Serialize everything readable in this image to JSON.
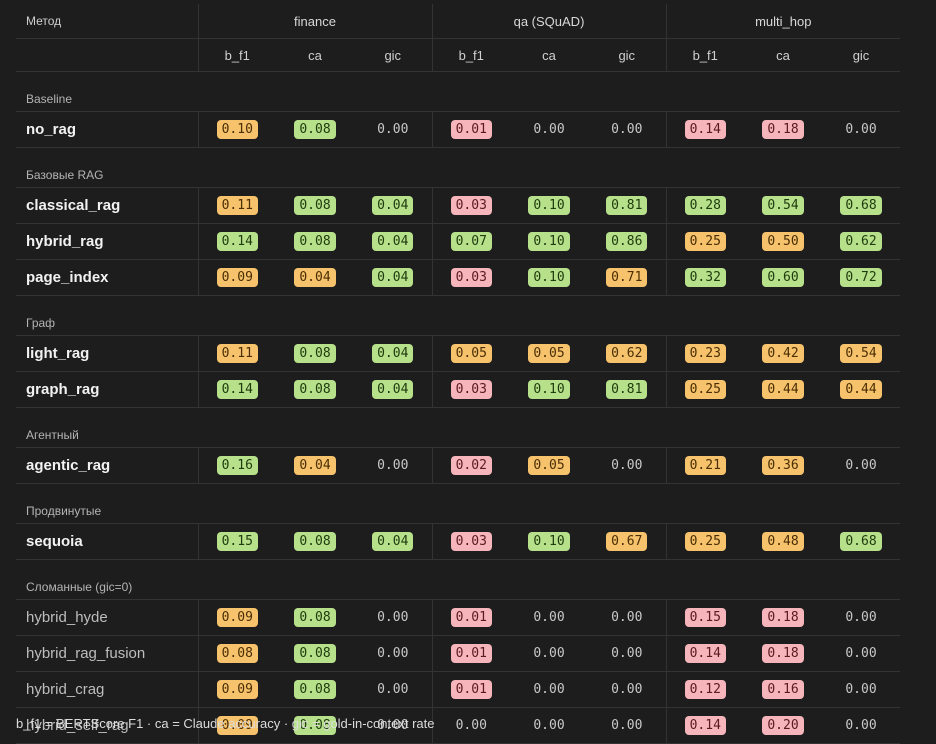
{
  "table": {
    "method_header": "Метод",
    "groups": [
      "finance",
      "qa (SQuAD)",
      "multi_hop"
    ],
    "subheaders": [
      "b_f1",
      "ca",
      "gic"
    ],
    "sections": [
      {
        "label": "Baseline",
        "rows": [
          {
            "name": "no_rag",
            "broken": false,
            "cells": [
              {
                "v": "0.10",
                "c": "orange"
              },
              {
                "v": "0.08",
                "c": "green"
              },
              {
                "v": "0.00",
                "c": "none"
              },
              {
                "v": "0.01",
                "c": "pink"
              },
              {
                "v": "0.00",
                "c": "none"
              },
              {
                "v": "0.00",
                "c": "none"
              },
              {
                "v": "0.14",
                "c": "pink"
              },
              {
                "v": "0.18",
                "c": "pink"
              },
              {
                "v": "0.00",
                "c": "none"
              }
            ]
          }
        ]
      },
      {
        "label": "Базовые RAG",
        "rows": [
          {
            "name": "classical_rag",
            "broken": false,
            "cells": [
              {
                "v": "0.11",
                "c": "orange"
              },
              {
                "v": "0.08",
                "c": "green"
              },
              {
                "v": "0.04",
                "c": "green"
              },
              {
                "v": "0.03",
                "c": "pink"
              },
              {
                "v": "0.10",
                "c": "green"
              },
              {
                "v": "0.81",
                "c": "green"
              },
              {
                "v": "0.28",
                "c": "green"
              },
              {
                "v": "0.54",
                "c": "green"
              },
              {
                "v": "0.68",
                "c": "green"
              }
            ]
          },
          {
            "name": "hybrid_rag",
            "broken": false,
            "cells": [
              {
                "v": "0.14",
                "c": "green"
              },
              {
                "v": "0.08",
                "c": "green"
              },
              {
                "v": "0.04",
                "c": "green"
              },
              {
                "v": "0.07",
                "c": "green"
              },
              {
                "v": "0.10",
                "c": "green"
              },
              {
                "v": "0.86",
                "c": "green"
              },
              {
                "v": "0.25",
                "c": "orange"
              },
              {
                "v": "0.50",
                "c": "orange"
              },
              {
                "v": "0.62",
                "c": "green"
              }
            ]
          },
          {
            "name": "page_index",
            "broken": false,
            "cells": [
              {
                "v": "0.09",
                "c": "orange"
              },
              {
                "v": "0.04",
                "c": "orange"
              },
              {
                "v": "0.04",
                "c": "green"
              },
              {
                "v": "0.03",
                "c": "pink"
              },
              {
                "v": "0.10",
                "c": "green"
              },
              {
                "v": "0.71",
                "c": "orange"
              },
              {
                "v": "0.32",
                "c": "green"
              },
              {
                "v": "0.60",
                "c": "green"
              },
              {
                "v": "0.72",
                "c": "green"
              }
            ]
          }
        ]
      },
      {
        "label": "Граф",
        "rows": [
          {
            "name": "light_rag",
            "broken": false,
            "cells": [
              {
                "v": "0.11",
                "c": "orange"
              },
              {
                "v": "0.08",
                "c": "green"
              },
              {
                "v": "0.04",
                "c": "green"
              },
              {
                "v": "0.05",
                "c": "orange"
              },
              {
                "v": "0.05",
                "c": "orange"
              },
              {
                "v": "0.62",
                "c": "orange"
              },
              {
                "v": "0.23",
                "c": "orange"
              },
              {
                "v": "0.42",
                "c": "orange"
              },
              {
                "v": "0.54",
                "c": "orange"
              }
            ]
          },
          {
            "name": "graph_rag",
            "broken": false,
            "cells": [
              {
                "v": "0.14",
                "c": "green"
              },
              {
                "v": "0.08",
                "c": "green"
              },
              {
                "v": "0.04",
                "c": "green"
              },
              {
                "v": "0.03",
                "c": "pink"
              },
              {
                "v": "0.10",
                "c": "green"
              },
              {
                "v": "0.81",
                "c": "green"
              },
              {
                "v": "0.25",
                "c": "orange"
              },
              {
                "v": "0.44",
                "c": "orange"
              },
              {
                "v": "0.44",
                "c": "orange"
              }
            ]
          }
        ]
      },
      {
        "label": "Агентный",
        "rows": [
          {
            "name": "agentic_rag",
            "broken": false,
            "cells": [
              {
                "v": "0.16",
                "c": "green"
              },
              {
                "v": "0.04",
                "c": "orange"
              },
              {
                "v": "0.00",
                "c": "none"
              },
              {
                "v": "0.02",
                "c": "pink"
              },
              {
                "v": "0.05",
                "c": "orange"
              },
              {
                "v": "0.00",
                "c": "none"
              },
              {
                "v": "0.21",
                "c": "orange"
              },
              {
                "v": "0.36",
                "c": "orange"
              },
              {
                "v": "0.00",
                "c": "none"
              }
            ]
          }
        ]
      },
      {
        "label": "Продвинутые",
        "rows": [
          {
            "name": "sequoia",
            "broken": false,
            "cells": [
              {
                "v": "0.15",
                "c": "green"
              },
              {
                "v": "0.08",
                "c": "green"
              },
              {
                "v": "0.04",
                "c": "green"
              },
              {
                "v": "0.03",
                "c": "pink"
              },
              {
                "v": "0.10",
                "c": "green"
              },
              {
                "v": "0.67",
                "c": "orange"
              },
              {
                "v": "0.25",
                "c": "orange"
              },
              {
                "v": "0.48",
                "c": "orange"
              },
              {
                "v": "0.68",
                "c": "green"
              }
            ]
          }
        ]
      },
      {
        "label": "Сломанные (gic=0)",
        "rows": [
          {
            "name": "hybrid_hyde",
            "broken": true,
            "cells": [
              {
                "v": "0.09",
                "c": "orange"
              },
              {
                "v": "0.08",
                "c": "green"
              },
              {
                "v": "0.00",
                "c": "none"
              },
              {
                "v": "0.01",
                "c": "pink"
              },
              {
                "v": "0.00",
                "c": "none"
              },
              {
                "v": "0.00",
                "c": "none"
              },
              {
                "v": "0.15",
                "c": "pink"
              },
              {
                "v": "0.18",
                "c": "pink"
              },
              {
                "v": "0.00",
                "c": "none"
              }
            ]
          },
          {
            "name": "hybrid_rag_fusion",
            "broken": true,
            "cells": [
              {
                "v": "0.08",
                "c": "orange"
              },
              {
                "v": "0.08",
                "c": "green"
              },
              {
                "v": "0.00",
                "c": "none"
              },
              {
                "v": "0.01",
                "c": "pink"
              },
              {
                "v": "0.00",
                "c": "none"
              },
              {
                "v": "0.00",
                "c": "none"
              },
              {
                "v": "0.14",
                "c": "pink"
              },
              {
                "v": "0.18",
                "c": "pink"
              },
              {
                "v": "0.00",
                "c": "none"
              }
            ]
          },
          {
            "name": "hybrid_crag",
            "broken": true,
            "cells": [
              {
                "v": "0.09",
                "c": "orange"
              },
              {
                "v": "0.08",
                "c": "green"
              },
              {
                "v": "0.00",
                "c": "none"
              },
              {
                "v": "0.01",
                "c": "pink"
              },
              {
                "v": "0.00",
                "c": "none"
              },
              {
                "v": "0.00",
                "c": "none"
              },
              {
                "v": "0.12",
                "c": "pink"
              },
              {
                "v": "0.16",
                "c": "pink"
              },
              {
                "v": "0.00",
                "c": "none"
              }
            ]
          },
          {
            "name": "hybrid_self_rag",
            "broken": true,
            "cells": [
              {
                "v": "0.09",
                "c": "orange"
              },
              {
                "v": "0.08",
                "c": "green"
              },
              {
                "v": "0.00",
                "c": "none"
              },
              {
                "v": "0.00",
                "c": "none"
              },
              {
                "v": "0.00",
                "c": "none"
              },
              {
                "v": "0.00",
                "c": "none"
              },
              {
                "v": "0.14",
                "c": "pink"
              },
              {
                "v": "0.20",
                "c": "pink"
              },
              {
                "v": "0.00",
                "c": "none"
              }
            ]
          }
        ]
      }
    ]
  },
  "legend": "b_f1 = BERTScore F1 · ca = Claude accuracy · gic = gold-in-context rate",
  "colors": {
    "green": "#b6e08a",
    "orange": "#f6c26b",
    "pink": "#f5b5bb",
    "background": "#1d1d1d"
  }
}
